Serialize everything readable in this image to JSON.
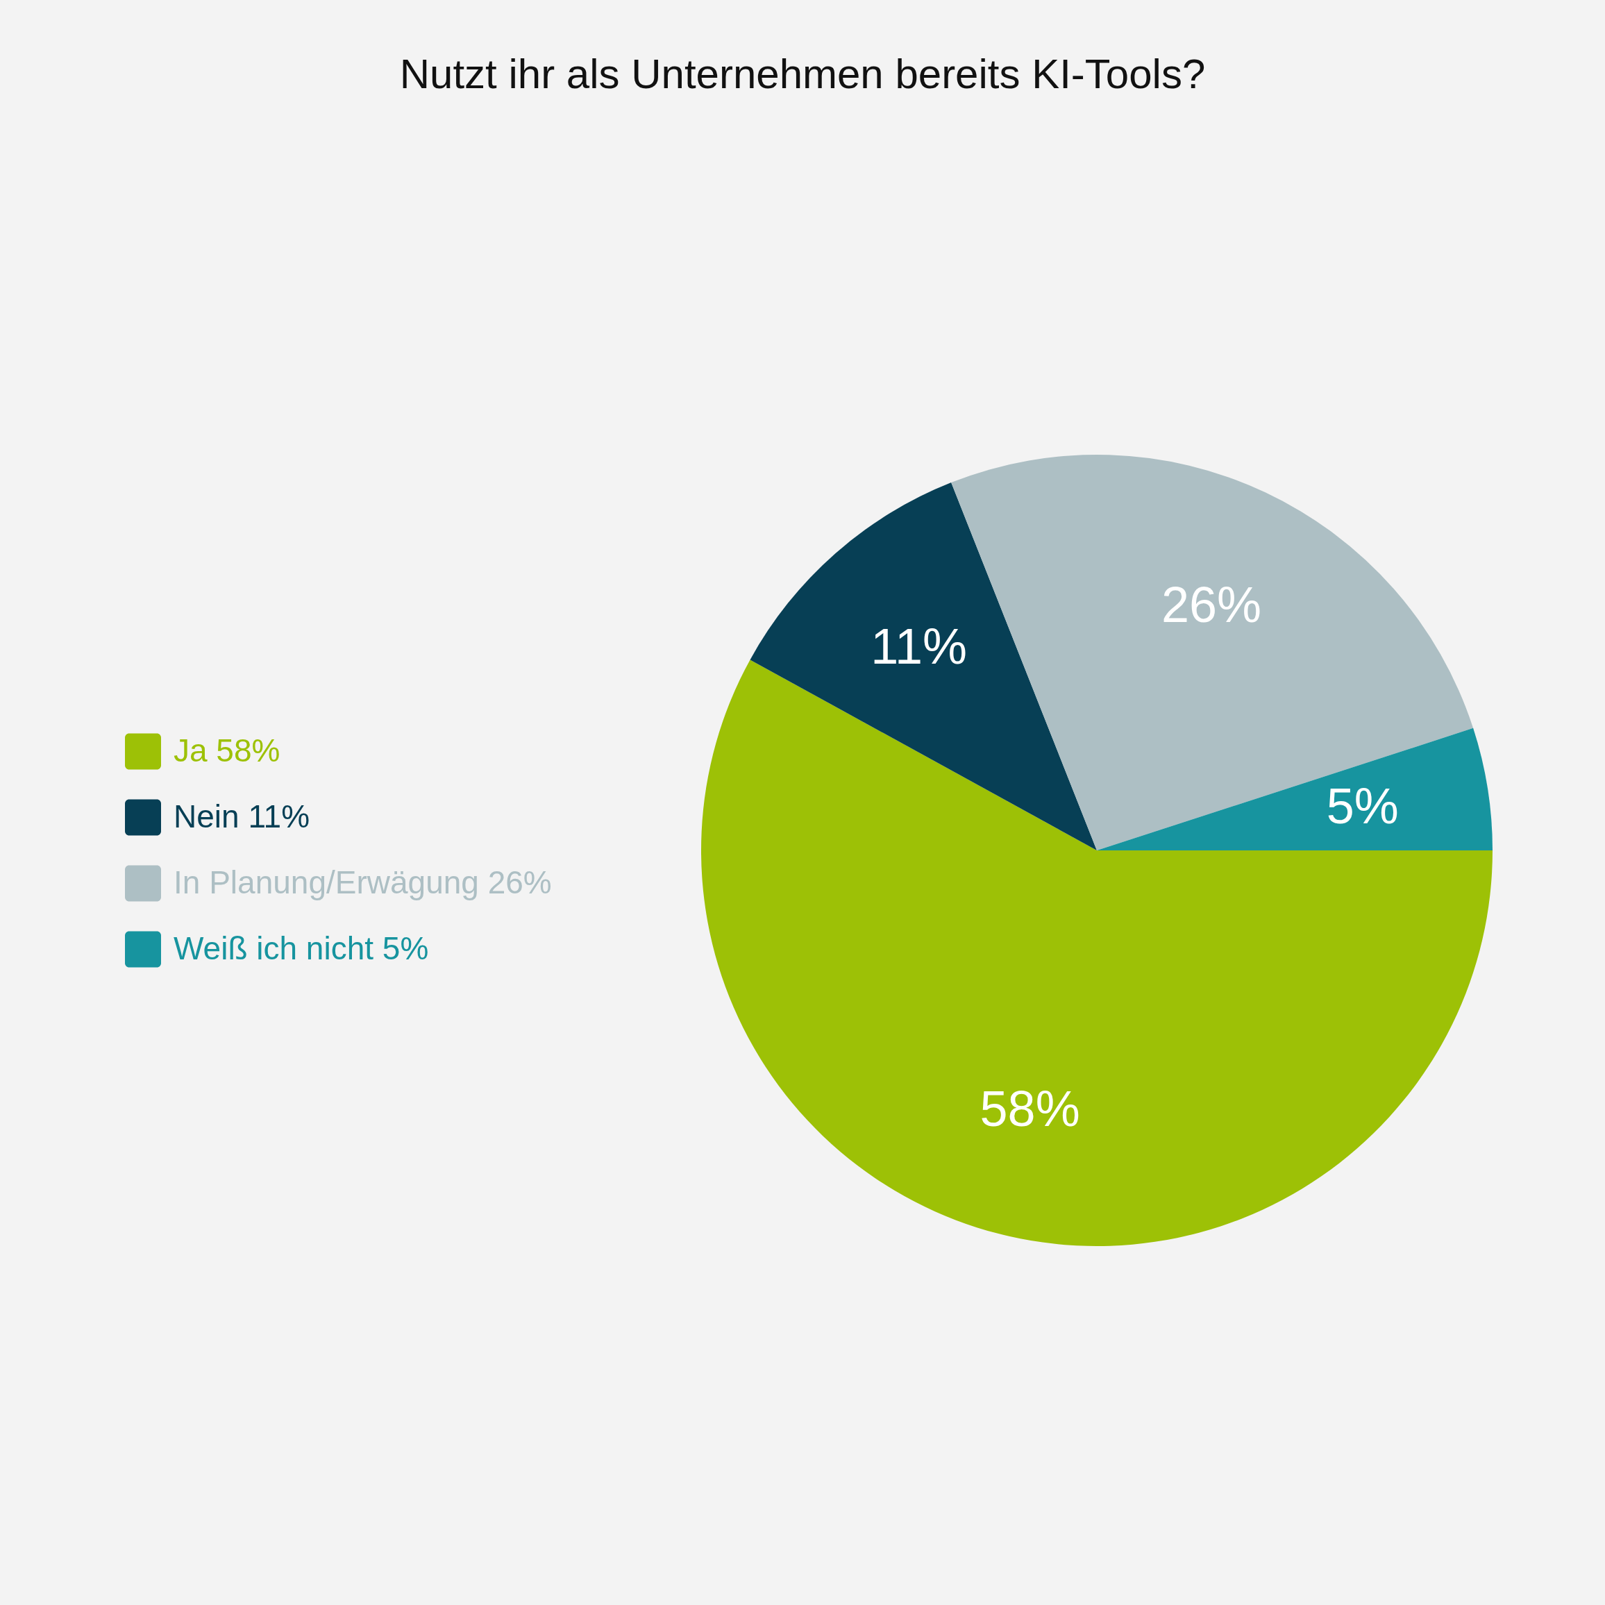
{
  "chart_data": {
    "type": "pie",
    "title": "Nutzt ihr als Unternehmen bereits KI-Tools?",
    "categories": [
      "Ja 58%",
      "Nein 11%",
      "In Planung/Erwägung 26%",
      "Weiß ich nicht 5%"
    ],
    "values": [
      58,
      11,
      26,
      5
    ],
    "colors": [
      "#9dc106",
      "#073f55",
      "#adbfc4",
      "#17949f"
    ],
    "value_labels": [
      "58%",
      "11%",
      "26%",
      "5%"
    ],
    "legend": "left"
  }
}
